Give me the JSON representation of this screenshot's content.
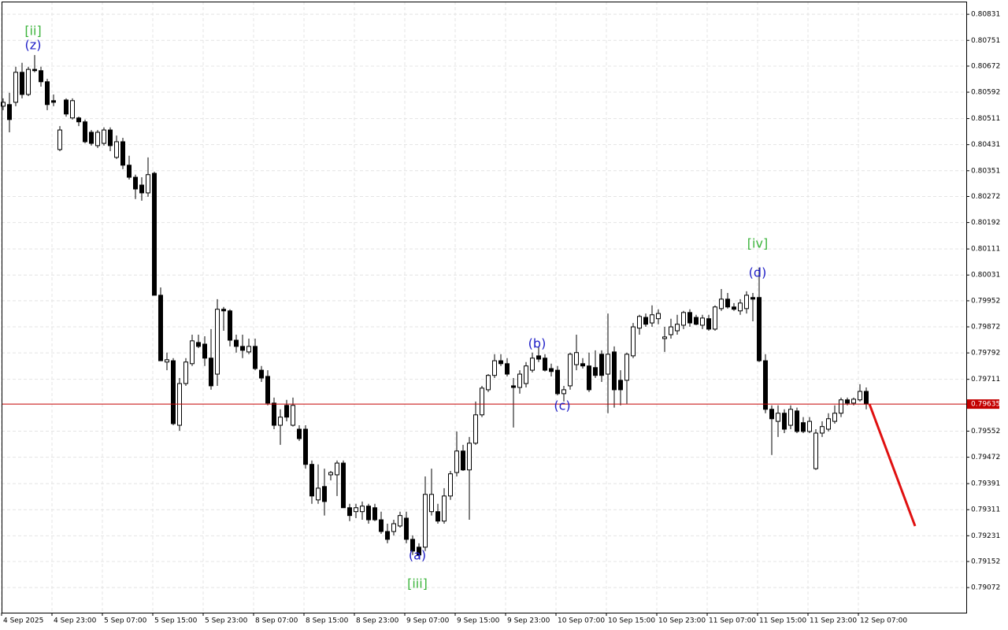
{
  "chart_data": {
    "type": "candlestick",
    "categories": [
      "4 Sep 2025",
      null,
      null,
      null,
      null,
      null,
      null,
      null,
      "4 Sep 23:00",
      null,
      null,
      null,
      null,
      null,
      null,
      null,
      "5 Sep 07:00",
      null,
      null,
      null,
      null,
      null,
      null,
      null,
      "5 Sep 15:00",
      null,
      null,
      null,
      null,
      null,
      null,
      null,
      "5 Sep 23:00",
      null,
      null,
      null,
      null,
      null,
      null,
      null,
      "8 Sep 07:00",
      null,
      null,
      null,
      null,
      null,
      null,
      null,
      "8 Sep 15:00",
      null,
      null,
      null,
      null,
      null,
      null,
      null,
      "8 Sep 23:00",
      null,
      null,
      null,
      null,
      null,
      null,
      null,
      "9 Sep 07:00",
      null,
      null,
      null,
      null,
      null,
      null,
      null,
      "9 Sep 15:00",
      null,
      null,
      null,
      null,
      null,
      null,
      null,
      "9 Sep 23:00",
      null,
      null,
      null,
      null,
      null,
      null,
      null,
      "10 Sep 07:00",
      null,
      null,
      null,
      null,
      null,
      null,
      null,
      "10 Sep 15:00",
      null,
      null,
      null,
      null,
      null,
      null,
      null,
      "10 Sep 23:00",
      null,
      null,
      null,
      null,
      null,
      null,
      null,
      "11 Sep 07:00",
      null,
      null,
      null,
      null,
      null,
      null,
      null,
      "11 Sep 15:00",
      null,
      null,
      null,
      null,
      null,
      null,
      null,
      "11 Sep 23:00",
      null,
      null,
      null,
      null,
      null,
      null,
      null,
      "12 Sep 07:00",
      null
    ],
    "open": [
      0.80549,
      0.80554,
      0.80561,
      0.80653,
      0.80585,
      0.80662,
      0.80658,
      0.80624,
      0.80566,
      0.80416,
      0.80568,
      0.80513,
      0.80513,
      0.80501,
      0.80469,
      0.80428,
      0.80435,
      0.80476,
      0.80392,
      0.8044,
      0.80368,
      0.80331,
      0.80307,
      0.80283,
      0.80343,
      0.79969,
      0.79764,
      0.79768,
      0.7957,
      0.79698,
      0.79759,
      0.79824,
      0.79819,
      0.79776,
      0.79727,
      0.79926,
      0.79921,
      0.79831,
      0.79812,
      0.79795,
      0.79812,
      0.79739,
      0.7972,
      0.79638,
      0.7957,
      0.79631,
      0.7957,
      0.79558,
      0.79558,
      0.7945,
      0.79341,
      0.79382,
      0.79418,
      0.79418,
      0.79454,
      0.79317,
      0.79305,
      0.79305,
      0.79322,
      0.79317,
      0.7928,
      0.79244,
      0.79244,
      0.79261,
      0.79285,
      0.7922,
      0.79196,
      0.79196,
      0.79305,
      0.79305,
      0.79276,
      0.79353,
      0.79425,
      0.79491,
      0.79433,
      0.79515,
      0.79602,
      0.79679,
      0.79723,
      0.79768,
      0.79759,
      0.79691,
      0.79686,
      0.79698,
      0.79739,
      0.79783,
      0.79776,
      0.79744,
      0.79739,
      0.79667,
      0.79691,
      0.79756,
      0.79759,
      0.79752,
      0.79747,
      0.79788,
      0.79727,
      0.79795,
      0.79708,
      0.79708,
      0.79783,
      0.79868,
      0.79901,
      0.79884,
      0.79897,
      0.79836,
      0.79848,
      0.7986,
      0.79877,
      0.79916,
      0.79901,
      0.79877,
      0.79897,
      0.79865,
      0.79928,
      0.79957,
      0.79933,
      0.79921,
      0.79928,
      0.79962,
      0.79962,
      0.79768,
      0.79619,
      0.79582,
      0.79607,
      0.7957,
      0.79614,
      0.79578,
      0.79551,
      0.79437,
      0.79546,
      0.79558,
      0.79582,
      0.79607,
      0.79648,
      0.79638,
      0.79648,
      0.79674
    ],
    "high": [
      0.80573,
      0.8059,
      0.8067,
      0.80682,
      0.8067,
      0.80706,
      0.8067,
      0.80633,
      0.80585,
      0.80488,
      0.80573,
      0.80573,
      0.80517,
      0.80508,
      0.80476,
      0.80476,
      0.80484,
      0.80484,
      0.80459,
      0.80452,
      0.80397,
      0.80339,
      0.80331,
      0.80392,
      0.80348,
      0.79993,
      0.79793,
      0.79776,
      0.79715,
      0.79776,
      0.79848,
      0.79848,
      0.79843,
      0.79865,
      0.79957,
      0.79933,
      0.79926,
      0.79848,
      0.79848,
      0.79836,
      0.79836,
      0.79752,
      0.79739,
      0.79655,
      0.79619,
      0.79648,
      0.79655,
      0.7957,
      0.7957,
      0.79462,
      0.7945,
      0.79437,
      0.7943,
      0.79462,
      0.79462,
      0.79329,
      0.79329,
      0.79336,
      0.79329,
      0.79329,
      0.79305,
      0.79268,
      0.7928,
      0.79305,
      0.79305,
      0.79232,
      0.79208,
      0.79413,
      0.79437,
      0.79329,
      0.79377,
      0.7943,
      0.79551,
      0.7951,
      0.79534,
      0.79643,
      0.79691,
      0.79727,
      0.79788,
      0.79788,
      0.79776,
      0.79715,
      0.79739,
      0.79764,
      0.79793,
      0.79812,
      0.79788,
      0.79759,
      0.79752,
      0.79691,
      0.79793,
      0.79848,
      0.79776,
      0.79793,
      0.798,
      0.798,
      0.79913,
      0.79812,
      0.79739,
      0.79793,
      0.79884,
      0.79909,
      0.79913,
      0.79938,
      0.79926,
      0.79872,
      0.79897,
      0.79909,
      0.79921,
      0.79926,
      0.79909,
      0.79909,
      0.79909,
      0.79938,
      0.79988,
      0.79976,
      0.79945,
      0.79957,
      0.79981,
      0.79976,
      0.80054,
      0.79788,
      0.79631,
      0.79631,
      0.79619,
      0.79631,
      0.79624,
      0.79595,
      0.79595,
      0.79558,
      0.79582,
      0.79607,
      0.79631,
      0.79655,
      0.79655,
      0.79655,
      0.79696,
      0.79686
    ],
    "low": [
      0.80537,
      0.80469,
      0.80549,
      0.80573,
      0.8058,
      0.80653,
      0.80609,
      0.80537,
      0.80549,
      0.80411,
      0.80517,
      0.80508,
      0.80488,
      0.80435,
      0.80428,
      0.80421,
      0.80428,
      0.80411,
      0.80387,
      0.80356,
      0.80324,
      0.80264,
      0.80259,
      0.80271,
      0.79969,
      0.79768,
      0.79739,
      0.7957,
      0.79553,
      0.79691,
      0.79752,
      0.79807,
      0.79752,
      0.79679,
      0.79691,
      0.7986,
      0.79812,
      0.79793,
      0.79776,
      0.79788,
      0.79739,
      0.79703,
      0.79631,
      0.79558,
      0.7951,
      0.79582,
      0.79566,
      0.79522,
      0.79437,
      0.79329,
      0.79329,
      0.79293,
      0.79401,
      0.79353,
      0.79317,
      0.79276,
      0.79285,
      0.7928,
      0.79268,
      0.79276,
      0.79237,
      0.79208,
      0.79232,
      0.79256,
      0.79208,
      0.79172,
      0.79165,
      0.79184,
      0.79293,
      0.79268,
      0.79268,
      0.79341,
      0.79413,
      0.7943,
      0.7928,
      0.7951,
      0.79595,
      0.79672,
      0.79715,
      0.79752,
      0.7972,
      0.79563,
      0.79667,
      0.79686,
      0.79732,
      0.79764,
      0.79735,
      0.7972,
      0.79662,
      0.79643,
      0.79679,
      0.79739,
      0.79744,
      0.79672,
      0.79715,
      0.79703,
      0.79607,
      0.79624,
      0.79631,
      0.79636,
      0.79776,
      0.79848,
      0.79872,
      0.79872,
      0.7988,
      0.79795,
      0.79836,
      0.79848,
      0.79865,
      0.79872,
      0.79877,
      0.79865,
      0.7986,
      0.7986,
      0.79921,
      0.79928,
      0.79921,
      0.79909,
      0.79913,
      0.79889,
      0.79764,
      0.79607,
      0.79479,
      0.79534,
      0.79546,
      0.79558,
      0.79546,
      0.79546,
      0.79546,
      0.79433,
      0.79534,
      0.79551,
      0.79575,
      0.79595,
      0.79631,
      0.79631,
      0.79643,
      0.79619
    ],
    "close": [
      0.80561,
      0.80508,
      0.80653,
      0.80585,
      0.80662,
      0.80658,
      0.80624,
      0.80554,
      0.80561,
      0.80476,
      0.80525,
      0.80566,
      0.80501,
      0.8044,
      0.80435,
      0.80469,
      0.80476,
      0.80428,
      0.8044,
      0.80368,
      0.80331,
      0.80295,
      0.80283,
      0.80339,
      0.79969,
      0.79768,
      0.79771,
      0.79575,
      0.79698,
      0.79764,
      0.79829,
      0.79812,
      0.79776,
      0.79691,
      0.79926,
      0.79921,
      0.79831,
      0.79812,
      0.798,
      0.79812,
      0.79744,
      0.79715,
      0.79638,
      0.7957,
      0.79595,
      0.79595,
      0.79631,
      0.79529,
      0.7945,
      0.79353,
      0.79377,
      0.79336,
      0.79425,
      0.79454,
      0.79317,
      0.79293,
      0.79317,
      0.79322,
      0.7928,
      0.7928,
      0.79244,
      0.7922,
      0.79268,
      0.79293,
      0.7922,
      0.79184,
      0.79172,
      0.79358,
      0.79358,
      0.79276,
      0.79353,
      0.79421,
      0.79491,
      0.79433,
      0.79515,
      0.79602,
      0.79684,
      0.79723,
      0.79768,
      0.79759,
      0.79727,
      0.79686,
      0.79727,
      0.79752,
      0.79776,
      0.79773,
      0.79739,
      0.79735,
      0.79667,
      0.79679,
      0.79788,
      0.79793,
      0.79752,
      0.79679,
      0.79723,
      0.79723,
      0.79788,
      0.79679,
      0.79679,
      0.79788,
      0.79872,
      0.79904,
      0.7988,
      0.79909,
      0.79913,
      0.79841,
      0.79872,
      0.7988,
      0.79916,
      0.79884,
      0.7988,
      0.79899,
      0.79865,
      0.79933,
      0.79957,
      0.79933,
      0.79926,
      0.79945,
      0.79969,
      0.79957,
      0.79768,
      0.79619,
      0.7959,
      0.79607,
      0.79558,
      0.79619,
      0.79551,
      0.79551,
      0.79582,
      0.79546,
      0.79566,
      0.7959,
      0.79607,
      0.79648,
      0.79638,
      0.7965,
      0.79674,
      0.79635
    ],
    "up_color": "#ffffff",
    "down_color": "#000000",
    "ylim": [
      0.78995,
      0.8087
    ],
    "yticks": [
      0.80831,
      0.80751,
      0.80672,
      0.80592,
      0.80511,
      0.80431,
      0.80351,
      0.80272,
      0.80192,
      0.80111,
      0.80031,
      0.79952,
      0.79872,
      0.79792,
      0.79711,
      0.79552,
      0.79472,
      0.79391,
      0.79311,
      0.79231,
      0.79152,
      0.79072
    ],
    "grid": true,
    "current_price": 0.79635,
    "current_price_color": "#c40000",
    "annotations": [
      {
        "text": "[ii]",
        "color": "#3cb43c"
      },
      {
        "text": "(z)",
        "color": "#2020c8"
      },
      {
        "text": "[iii]",
        "color": "#3cb43c"
      },
      {
        "text": "(a)",
        "color": "#2020c8"
      },
      {
        "text": "(b)",
        "color": "#2020c8"
      },
      {
        "text": "(c)",
        "color": "#2020c8"
      },
      {
        "text": "[iv]",
        "color": "#3cb43c"
      },
      {
        "text": "(d)",
        "color": "#2020c8"
      }
    ]
  }
}
